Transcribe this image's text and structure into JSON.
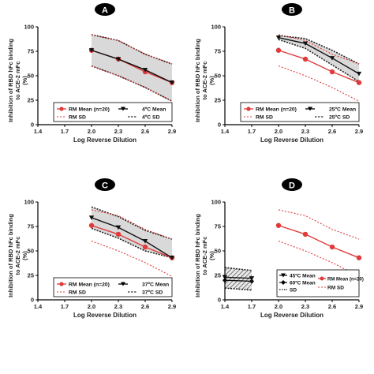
{
  "colors": {
    "rm": "#e03a3a",
    "other": "#111111",
    "band_fill": "#d9d9d9",
    "band_edge": "#222222"
  },
  "chart_data": [
    {
      "type": "line",
      "panel_label": "A",
      "xlabel": "Log Reverse Dilution",
      "ylabel_lines": [
        "Inhibition of RBD hFc binding",
        "to ACE-2 mFc",
        "(%)"
      ],
      "xlim": [
        1.4,
        2.9
      ],
      "ylim": [
        0,
        100
      ],
      "xticks": [
        "1.4",
        "1.7",
        "2.0",
        "2.3",
        "2.6",
        "2.9"
      ],
      "yticks": [
        "0",
        "25",
        "50",
        "75",
        "100"
      ],
      "series": [
        {
          "name": "RM Mean (n=20)",
          "x": [
            2.0,
            2.3,
            2.6,
            2.9
          ],
          "values": [
            76,
            67,
            54,
            43
          ]
        },
        {
          "name": "4ºC Mean",
          "x": [
            2.0,
            2.3,
            2.6,
            2.9
          ],
          "values": [
            76,
            67,
            56,
            43
          ]
        }
      ],
      "rm_sd": {
        "name": "RM SD",
        "x": [
          2.0,
          2.3,
          2.6,
          2.9
        ],
        "upper": [
          92,
          86,
          72,
          62
        ],
        "lower": [
          60,
          50,
          38,
          24
        ]
      },
      "other_sd": {
        "name": "4ºC SD",
        "x": [
          2.0,
          2.3,
          2.6,
          2.9
        ],
        "upper": [
          92,
          86,
          72,
          62
        ],
        "lower": [
          60,
          50,
          38,
          24
        ]
      },
      "legend": {
        "rm_mean": "RM Mean (n=20)",
        "other_mean": "4ºC Mean",
        "rm_sd": "RM SD",
        "other_sd": "4ºC SD"
      }
    },
    {
      "type": "line",
      "panel_label": "B",
      "xlabel": "Log Reverse Dilution",
      "ylabel_lines": [
        "Inhibition of RBD hFc binding",
        "to ACE-2 mFc",
        "(%)"
      ],
      "xlim": [
        1.4,
        2.9
      ],
      "ylim": [
        0,
        100
      ],
      "xticks": [
        "1.4",
        "1.7",
        "2.0",
        "2.3",
        "2.6",
        "2.9"
      ],
      "yticks": [
        "0",
        "25",
        "50",
        "75",
        "100"
      ],
      "series": [
        {
          "name": "RM Mean (n=20)",
          "x": [
            2.0,
            2.3,
            2.6,
            2.9
          ],
          "values": [
            76,
            67,
            54,
            43
          ]
        },
        {
          "name": "25ºC Mean",
          "x": [
            2.0,
            2.3,
            2.6,
            2.9
          ],
          "values": [
            89,
            83,
            68,
            52
          ]
        }
      ],
      "rm_sd": {
        "name": "RM SD",
        "x": [
          2.0,
          2.3,
          2.6,
          2.9
        ],
        "upper": [
          92,
          86,
          72,
          62
        ],
        "lower": [
          60,
          50,
          38,
          24
        ]
      },
      "other_sd": {
        "name": "25ºC SD",
        "x": [
          2.0,
          2.3,
          2.6,
          2.9
        ],
        "upper": [
          91,
          88,
          76,
          62
        ],
        "lower": [
          87,
          78,
          61,
          44
        ]
      },
      "legend": {
        "rm_mean": "RM Mean (n=20)",
        "other_mean": "25ºC Mean",
        "rm_sd": "RM SD",
        "other_sd": "25ºC SD"
      }
    },
    {
      "type": "line",
      "panel_label": "C",
      "xlabel": "Log Reverse Dilution",
      "ylabel_lines": [
        "Inhibition of RBD hFc binding",
        "to ACE-2 mFc",
        "(%)"
      ],
      "xlim": [
        1.4,
        2.9
      ],
      "ylim": [
        0,
        100
      ],
      "xticks": [
        "1.4",
        "1.7",
        "2.0",
        "2.3",
        "2.6",
        "2.9"
      ],
      "yticks": [
        "0",
        "25",
        "50",
        "75",
        "100"
      ],
      "series": [
        {
          "name": "RM Mean (n=20)",
          "x": [
            2.0,
            2.3,
            2.6,
            2.9
          ],
          "values": [
            76,
            67,
            54,
            43
          ]
        },
        {
          "name": "37ºC Mean",
          "x": [
            2.0,
            2.3,
            2.6,
            2.9
          ],
          "values": [
            84,
            74,
            60,
            43
          ]
        }
      ],
      "rm_sd": {
        "name": "RM SD",
        "x": [
          2.0,
          2.3,
          2.6,
          2.9
        ],
        "upper": [
          92,
          86,
          72,
          62
        ],
        "lower": [
          60,
          50,
          38,
          24
        ]
      },
      "other_sd": {
        "name": "37ºC SD",
        "x": [
          2.0,
          2.3,
          2.6,
          2.9
        ],
        "upper": [
          95,
          85,
          71,
          62
        ],
        "lower": [
          73,
          63,
          50,
          43
        ]
      },
      "legend": {
        "rm_mean": "RM Mean (n=20)",
        "other_mean": "37ºC Mean",
        "rm_sd": "RM SD",
        "other_sd": "37ºC SD"
      }
    },
    {
      "type": "line",
      "panel_label": "D",
      "xlabel": "Log Reverse Dilution",
      "ylabel_lines": [
        "Inhibition of RBD hFc binding",
        "to ACE-2 mFc",
        "(%)"
      ],
      "xlim": [
        1.4,
        2.9
      ],
      "ylim": [
        0,
        100
      ],
      "xticks": [
        "1.4",
        "1.7",
        "2.0",
        "2.3",
        "2.6",
        "2.9"
      ],
      "yticks": [
        "0",
        "25",
        "50",
        "75",
        "100"
      ],
      "series": [
        {
          "name": "RM Mean (n=20)",
          "x": [
            2.0,
            2.3,
            2.6,
            2.9
          ],
          "values": [
            76,
            67,
            54,
            43
          ]
        },
        {
          "name": "45ºC Mean",
          "x": [
            1.4,
            1.7
          ],
          "values": [
            23,
            22
          ]
        },
        {
          "name": "60ºC Mean",
          "x": [
            1.4,
            1.7
          ],
          "values": [
            20,
            19
          ]
        }
      ],
      "rm_sd": {
        "name": "RM SD",
        "x": [
          2.0,
          2.3,
          2.6,
          2.9
        ],
        "upper": [
          92,
          86,
          72,
          62
        ],
        "lower": [
          60,
          50,
          38,
          24
        ]
      },
      "other_sd": {
        "name": "SD",
        "x": [
          1.4,
          1.7
        ],
        "upper": [
          33,
          30
        ],
        "lower": [
          12,
          10
        ]
      },
      "legend": {
        "mean_45": "45ºC Mean",
        "mean_60": "60ºC Mean",
        "sd": "SD",
        "rm_mean": "RM Mean (n=20)",
        "rm_sd": "RM SD"
      }
    }
  ]
}
